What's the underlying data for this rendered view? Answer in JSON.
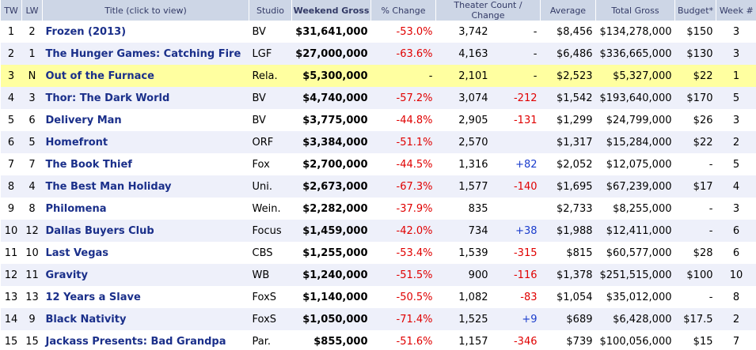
{
  "header": [
    "TW",
    "LW",
    "Title (click to view)",
    "Studio",
    "Weekend Gross",
    "% Change",
    "Theater Count / Change",
    "Average",
    "Total Gross",
    "Budget*",
    "Week #"
  ],
  "rows": [
    [
      "1",
      "2",
      "Frozen (2013)",
      "BV",
      "$31,641,000",
      "-53.0%",
      "3,742",
      "-",
      "$8,456",
      "$134,278,000",
      "$150",
      "3"
    ],
    [
      "2",
      "1",
      "The Hunger Games: Catching Fire",
      "LGF",
      "$27,000,000",
      "-63.6%",
      "4,163",
      "-",
      "$6,486",
      "$336,665,000",
      "$130",
      "3"
    ],
    [
      "3",
      "N",
      "Out of the Furnace",
      "Rela.",
      "$5,300,000",
      "-",
      "2,101",
      "-",
      "$2,523",
      "$5,327,000",
      "$22",
      "1"
    ],
    [
      "4",
      "3",
      "Thor: The Dark World",
      "BV",
      "$4,740,000",
      "-57.2%",
      "3,074",
      "-212",
      "$1,542",
      "$193,640,000",
      "$170",
      "5"
    ],
    [
      "5",
      "6",
      "Delivery Man",
      "BV",
      "$3,775,000",
      "-44.8%",
      "2,905",
      "-131",
      "$1,299",
      "$24,799,000",
      "$26",
      "3"
    ],
    [
      "6",
      "5",
      "Homefront",
      "ORF",
      "$3,384,000",
      "-51.1%",
      "2,570",
      null,
      "$1,317",
      "$15,284,000",
      "$22",
      "2"
    ],
    [
      "7",
      "7",
      "The Book Thief",
      "Fox",
      "$2,700,000",
      "-44.5%",
      "1,316",
      "+82",
      "$2,052",
      "$12,075,000",
      "-",
      "5"
    ],
    [
      "8",
      "4",
      "The Best Man Holiday",
      "Uni.",
      "$2,673,000",
      "-67.3%",
      "1,577",
      "-140",
      "$1,695",
      "$67,239,000",
      "$17",
      "4"
    ],
    [
      "9",
      "8",
      "Philomena",
      "Wein.",
      "$2,282,000",
      "-37.9%",
      "835",
      null,
      "$2,733",
      "$8,255,000",
      "-",
      "3"
    ],
    [
      "10",
      "12",
      "Dallas Buyers Club",
      "Focus",
      "$1,459,000",
      "-42.0%",
      "734",
      "+38",
      "$1,988",
      "$12,411,000",
      "-",
      "6"
    ],
    [
      "11",
      "10",
      "Last Vegas",
      "CBS",
      "$1,255,000",
      "-53.4%",
      "1,539",
      "-315",
      "$815",
      "$60,577,000",
      "$28",
      "6"
    ],
    [
      "12",
      "11",
      "Gravity",
      "WB",
      "$1,240,000",
      "-51.5%",
      "900",
      "-116",
      "$1,378",
      "$251,515,000",
      "$100",
      "10"
    ],
    [
      "13",
      "13",
      "12 Years a Slave",
      "FoxS",
      "$1,140,000",
      "-50.5%",
      "1,082",
      "-83",
      "$1,054",
      "$35,012,000",
      "-",
      "8"
    ],
    [
      "14",
      "9",
      "Black Nativity",
      "FoxS",
      "$1,050,000",
      "-71.4%",
      "1,525",
      "+9",
      "$689",
      "$6,428,000",
      "$17.5",
      "2"
    ],
    [
      "15",
      "15",
      "Jackass Presents: Bad Grandpa",
      "Par.",
      "$855,000",
      "-51.6%",
      "1,157",
      "-346",
      "$739",
      "$100,056,000",
      "$15",
      "7"
    ]
  ]
}
